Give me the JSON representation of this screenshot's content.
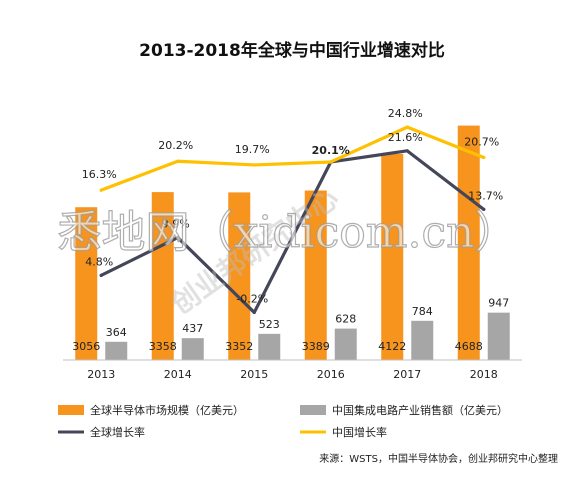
{
  "chart_data": {
    "type": "bar",
    "title": "2013-2018年全球与中国行业增速对比",
    "categories": [
      "2013",
      "2014",
      "2015",
      "2016",
      "2017",
      "2018"
    ],
    "series": [
      {
        "name": "全球半导体市场规模（亿美元）",
        "kind": "bar",
        "color": "#F7941D",
        "values": [
          3056,
          3358,
          3352,
          3389,
          4122,
          4688
        ]
      },
      {
        "name": "中国集成电路产业销售额（亿美元）",
        "kind": "bar",
        "color": "#A6A6A6",
        "values": [
          364,
          437,
          523,
          628,
          784,
          947
        ]
      },
      {
        "name": "全球增长率",
        "kind": "line",
        "color": "#44475A",
        "values": [
          4.8,
          9.9,
          -0.2,
          20.1,
          21.6,
          13.7
        ]
      },
      {
        "name": "中国增长率",
        "kind": "line",
        "color": "#FFC000",
        "values": [
          16.3,
          20.2,
          19.7,
          20.1,
          24.8,
          20.7
        ]
      }
    ],
    "point_labels": {
      "global_growth": [
        "4.8%",
        "9.9%",
        "-0.2%",
        "",
        "21.6%",
        "13.7%"
      ],
      "china_growth": [
        "16.3%",
        "20.2%",
        "19.7%",
        "20.1%",
        "24.8%",
        "20.7%"
      ]
    },
    "bar_value_scale": [
      0,
      5200
    ],
    "growth_value_scale": [
      -5,
      29
    ],
    "grid": false,
    "legend_position": "bottom"
  },
  "source": "来源：WSTS，中国半导体协会，创业邦研究中心整理",
  "watermark": {
    "main": "悉地网（xidicom.cn）",
    "diagonal": "创业邦研究中心"
  }
}
